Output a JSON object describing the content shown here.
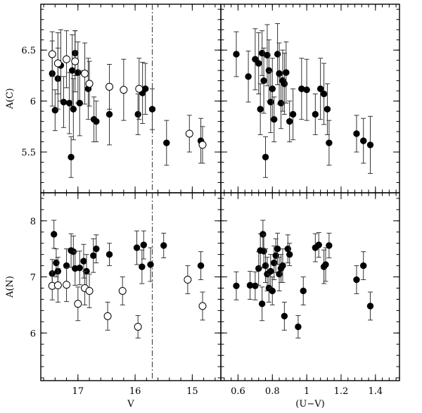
{
  "chart_data": {
    "type": "scatter",
    "x_axis_labels": {
      "left": "V",
      "right": "(U−V)"
    },
    "y_axis_labels": {
      "top": "A(C)",
      "bottom": "A(N)"
    },
    "x_ranges": {
      "V": [
        17.65,
        14.5
      ],
      "UV": [
        0.5,
        1.54
      ]
    },
    "y_ranges": {
      "C": [
        5.1,
        6.95
      ],
      "N": [
        5.15,
        8.5
      ]
    },
    "x_ticks": {
      "V": [
        {
          "value": 17,
          "label": "17"
        },
        {
          "value": 16,
          "label": "16"
        },
        {
          "value": 15,
          "label": "15"
        }
      ],
      "UV": [
        {
          "value": 0.6,
          "label": "0.6"
        },
        {
          "value": 0.8,
          "label": "0.8"
        },
        {
          "value": 1.0,
          "label": "1"
        },
        {
          "value": 1.2,
          "label": "1.2"
        },
        {
          "value": 1.4,
          "label": "1.4"
        }
      ]
    },
    "y_ticks": {
      "C": [
        {
          "value": 5.5,
          "label": "5.5"
        },
        {
          "value": 6.0,
          "label": "6"
        },
        {
          "value": 6.5,
          "label": "6.5"
        }
      ],
      "N": [
        {
          "value": 6,
          "label": "6"
        },
        {
          "value": 7,
          "label": "7"
        },
        {
          "value": 8,
          "label": "8"
        }
      ]
    },
    "reference_line_V": 15.7,
    "panels": [
      {
        "id": "C_vs_V",
        "points_filled": [
          [
            17.45,
            6.27,
            0.32
          ],
          [
            17.4,
            5.91,
            0.2
          ],
          [
            17.35,
            6.22,
            0.3
          ],
          [
            17.3,
            6.35,
            0.35
          ],
          [
            17.25,
            5.99,
            0.25
          ],
          [
            17.15,
            5.98,
            0.3
          ],
          [
            17.12,
            5.45,
            0.2
          ],
          [
            17.1,
            6.3,
            0.35
          ],
          [
            17.08,
            5.92,
            0.3
          ],
          [
            17.05,
            6.47,
            0.22
          ],
          [
            17.0,
            6.28,
            0.3
          ],
          [
            16.97,
            5.98,
            0.32
          ],
          [
            16.82,
            6.12,
            0.3
          ],
          [
            16.72,
            5.82,
            0.22
          ],
          [
            16.68,
            5.8,
            0.2
          ],
          [
            16.45,
            5.87,
            0.3
          ],
          [
            15.95,
            5.87,
            0.2
          ],
          [
            15.87,
            6.08,
            0.3
          ],
          [
            15.82,
            6.12,
            0.25
          ],
          [
            15.7,
            5.92,
            0.2
          ],
          [
            15.45,
            5.59,
            0.22
          ],
          [
            14.85,
            5.61,
            0.22
          ]
        ],
        "points_open": [
          [
            17.45,
            6.46,
            0.22
          ],
          [
            17.35,
            6.37,
            0.3
          ],
          [
            17.2,
            6.41,
            0.28
          ],
          [
            17.05,
            6.39,
            0.3
          ],
          [
            16.88,
            6.27,
            0.3
          ],
          [
            16.8,
            6.17,
            0.22
          ],
          [
            16.45,
            6.14,
            0.22
          ],
          [
            16.2,
            6.11,
            0.3
          ],
          [
            15.93,
            6.12,
            0.3
          ],
          [
            15.05,
            5.68,
            0.18
          ],
          [
            14.82,
            5.57,
            0.18
          ]
        ]
      },
      {
        "id": "C_vs_UV",
        "points_filled": [
          [
            0.59,
            6.46,
            0.22
          ],
          [
            0.66,
            6.24,
            0.25
          ],
          [
            0.7,
            6.41,
            0.3
          ],
          [
            0.72,
            6.37,
            0.3
          ],
          [
            0.73,
            5.92,
            0.25
          ],
          [
            0.74,
            6.47,
            0.22
          ],
          [
            0.75,
            6.2,
            0.32
          ],
          [
            0.76,
            5.45,
            0.2
          ],
          [
            0.77,
            6.45,
            0.3
          ],
          [
            0.78,
            6.3,
            0.3
          ],
          [
            0.79,
            5.99,
            0.3
          ],
          [
            0.8,
            6.12,
            0.3
          ],
          [
            0.81,
            5.82,
            0.22
          ],
          [
            0.83,
            6.46,
            0.3
          ],
          [
            0.84,
            6.27,
            0.3
          ],
          [
            0.85,
            5.98,
            0.25
          ],
          [
            0.86,
            6.2,
            0.3
          ],
          [
            0.87,
            6.17,
            0.3
          ],
          [
            0.88,
            6.28,
            0.3
          ],
          [
            0.9,
            5.8,
            0.2
          ],
          [
            0.92,
            5.87,
            0.25
          ],
          [
            0.97,
            6.12,
            0.3
          ],
          [
            1.0,
            6.11,
            0.3
          ],
          [
            1.05,
            5.87,
            0.2
          ],
          [
            1.08,
            6.12,
            0.3
          ],
          [
            1.1,
            6.07,
            0.3
          ],
          [
            1.12,
            5.92,
            0.25
          ],
          [
            1.13,
            5.59,
            0.22
          ],
          [
            1.29,
            5.68,
            0.18
          ],
          [
            1.33,
            5.61,
            0.22
          ],
          [
            1.37,
            5.57,
            0.28
          ]
        ]
      },
      {
        "id": "N_vs_V",
        "points_filled": [
          [
            17.45,
            7.06,
            0.25
          ],
          [
            17.42,
            7.76,
            0.25
          ],
          [
            17.38,
            7.25,
            0.25
          ],
          [
            17.35,
            7.1,
            0.25
          ],
          [
            17.2,
            7.2,
            0.3
          ],
          [
            17.12,
            7.47,
            0.3
          ],
          [
            17.08,
            7.45,
            0.28
          ],
          [
            17.05,
            7.15,
            0.3
          ],
          [
            16.97,
            7.16,
            0.3
          ],
          [
            16.9,
            7.28,
            0.3
          ],
          [
            16.85,
            7.1,
            0.3
          ],
          [
            16.73,
            7.38,
            0.3
          ],
          [
            16.68,
            7.5,
            0.25
          ],
          [
            16.45,
            7.4,
            0.2
          ],
          [
            15.97,
            7.52,
            0.3
          ],
          [
            15.88,
            7.18,
            0.3
          ],
          [
            15.85,
            7.57,
            0.25
          ],
          [
            15.73,
            7.22,
            0.3
          ],
          [
            15.5,
            7.56,
            0.22
          ],
          [
            14.85,
            7.2,
            0.25
          ]
        ],
        "points_open": [
          [
            17.45,
            6.84,
            0.25
          ],
          [
            17.35,
            6.85,
            0.3
          ],
          [
            17.2,
            6.86,
            0.3
          ],
          [
            17.0,
            6.52,
            0.3
          ],
          [
            16.88,
            6.8,
            0.3
          ],
          [
            16.8,
            6.75,
            0.3
          ],
          [
            16.48,
            6.3,
            0.25
          ],
          [
            16.22,
            6.75,
            0.25
          ],
          [
            15.95,
            6.11,
            0.2
          ],
          [
            15.08,
            6.95,
            0.25
          ],
          [
            14.82,
            6.48,
            0.25
          ]
        ]
      },
      {
        "id": "N_vs_UV",
        "points_filled": [
          [
            0.59,
            6.84,
            0.25
          ],
          [
            0.67,
            6.85,
            0.25
          ],
          [
            0.7,
            6.84,
            0.25
          ],
          [
            0.72,
            7.15,
            0.3
          ],
          [
            0.73,
            7.47,
            0.3
          ],
          [
            0.74,
            6.52,
            0.3
          ],
          [
            0.745,
            7.76,
            0.25
          ],
          [
            0.75,
            7.46,
            0.3
          ],
          [
            0.76,
            7.2,
            0.3
          ],
          [
            0.77,
            7.05,
            0.3
          ],
          [
            0.78,
            6.8,
            0.25
          ],
          [
            0.79,
            7.1,
            0.3
          ],
          [
            0.8,
            6.75,
            0.25
          ],
          [
            0.81,
            7.25,
            0.3
          ],
          [
            0.82,
            7.38,
            0.3
          ],
          [
            0.83,
            7.5,
            0.28
          ],
          [
            0.84,
            7.05,
            0.3
          ],
          [
            0.85,
            7.15,
            0.25
          ],
          [
            0.86,
            7.2,
            0.3
          ],
          [
            0.87,
            6.3,
            0.25
          ],
          [
            0.89,
            7.5,
            0.25
          ],
          [
            0.9,
            7.4,
            0.2
          ],
          [
            0.95,
            6.11,
            0.2
          ],
          [
            0.98,
            6.75,
            0.25
          ],
          [
            1.05,
            7.52,
            0.25
          ],
          [
            1.07,
            7.57,
            0.22
          ],
          [
            1.1,
            7.18,
            0.3
          ],
          [
            1.11,
            7.22,
            0.3
          ],
          [
            1.13,
            7.56,
            0.22
          ],
          [
            1.29,
            6.95,
            0.25
          ],
          [
            1.33,
            7.2,
            0.25
          ],
          [
            1.37,
            6.48,
            0.25
          ]
        ]
      }
    ]
  }
}
